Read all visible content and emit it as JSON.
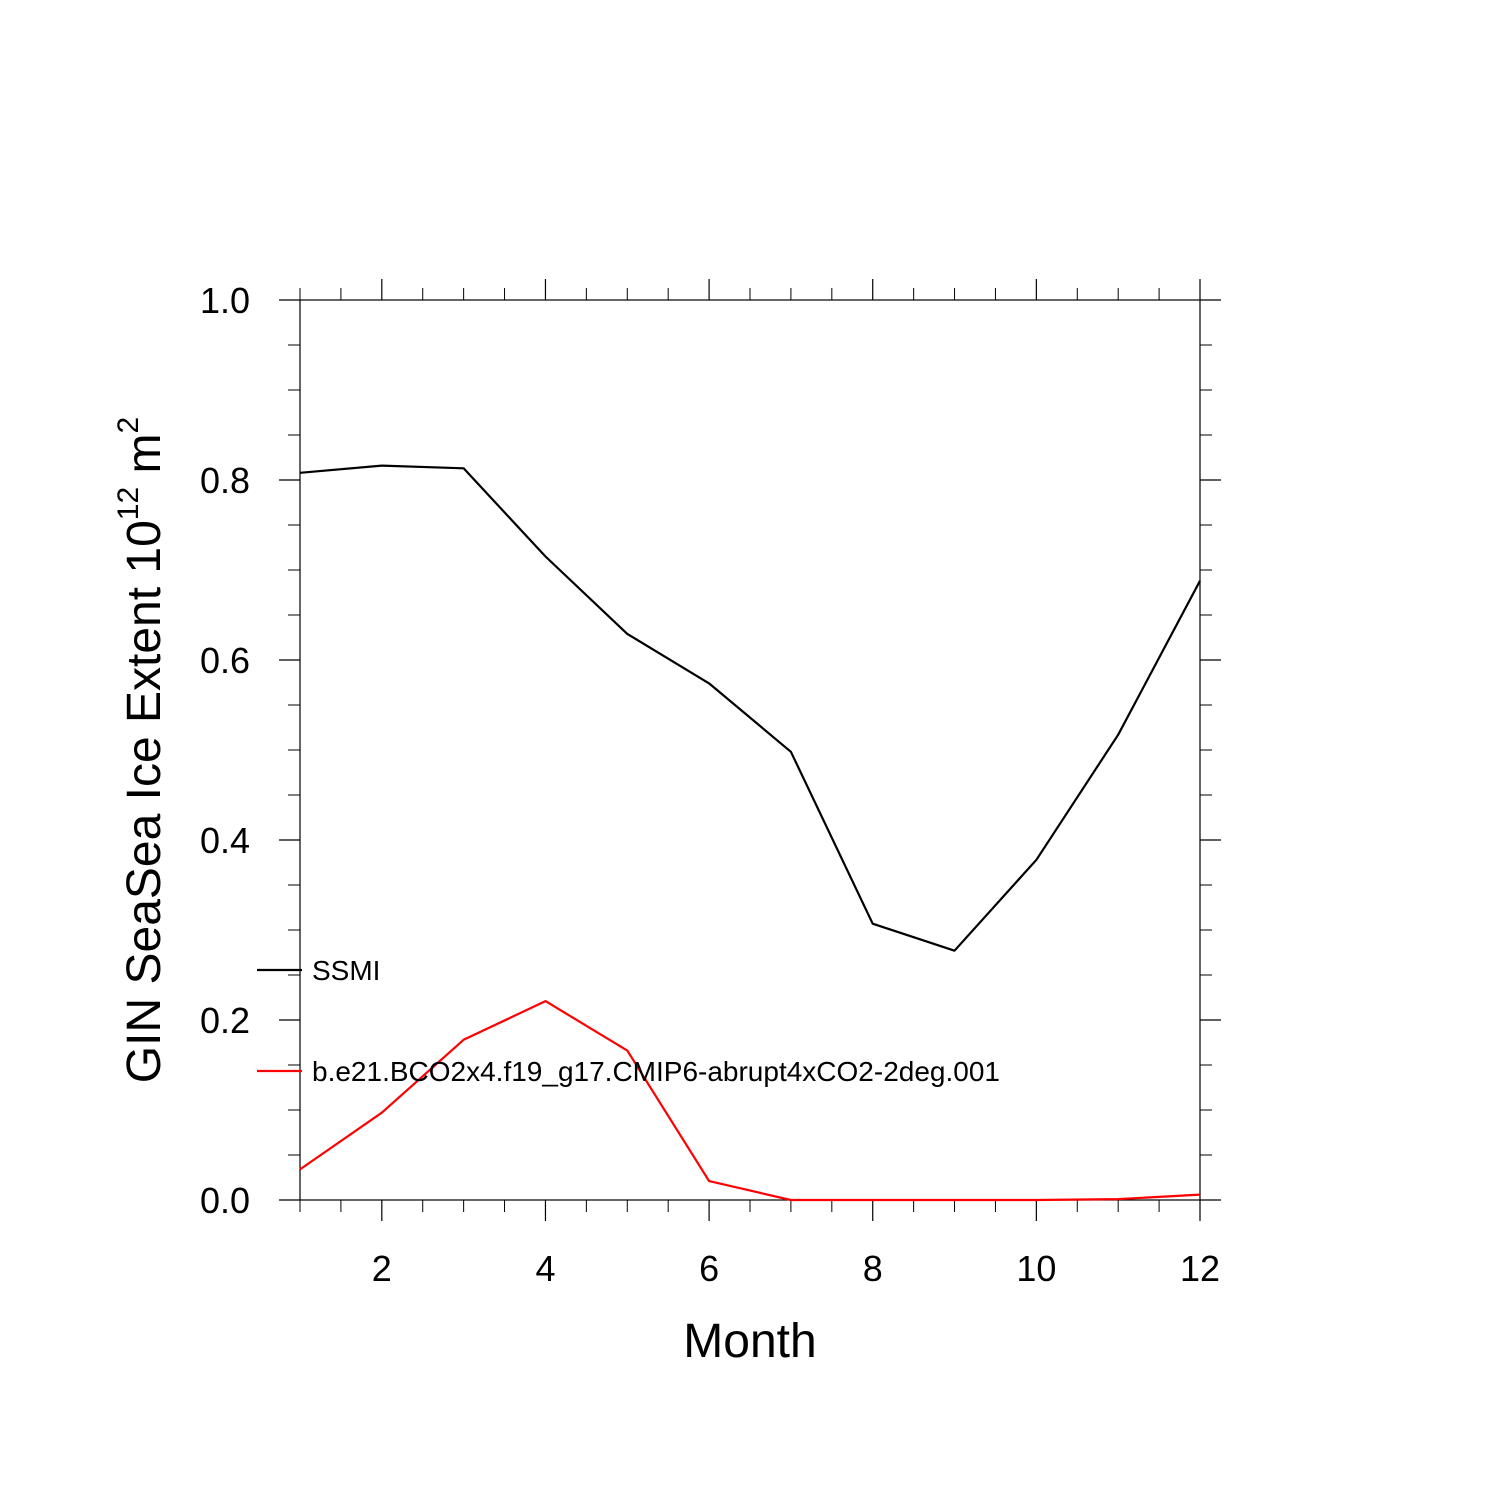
{
  "chart_data": {
    "type": "line",
    "title": "",
    "xlabel": "Month",
    "ylabel": {
      "text": "GIN SeaSea Ice Extent 10",
      "sup": "12",
      "unit": " m",
      "unit_sup": "2"
    },
    "xlim": [
      1,
      12
    ],
    "ylim": [
      0.0,
      1.0
    ],
    "x_ticks": [
      2,
      4,
      6,
      8,
      10,
      12
    ],
    "x_tick_labels": [
      "2",
      "4",
      "6",
      "8",
      "10",
      "12"
    ],
    "y_ticks": [
      0.0,
      0.2,
      0.4,
      0.6,
      0.8,
      1.0
    ],
    "y_tick_labels": [
      "0.0",
      "0.2",
      "0.4",
      "0.6",
      "0.8",
      "1.0"
    ],
    "grid": false,
    "legend_position": "left",
    "x": [
      1,
      2,
      3,
      4,
      5,
      6,
      7,
      8,
      9,
      10,
      11,
      12
    ],
    "series": [
      {
        "name": "SSMI",
        "color": "#000000",
        "values": [
          0.808,
          0.816,
          0.813,
          0.715,
          0.629,
          0.574,
          0.498,
          0.307,
          0.277,
          0.378,
          0.517,
          0.688
        ]
      },
      {
        "name": "b.e21.BCO2x4.f19_g17.CMIP6-abrupt4xCO2-2deg.001",
        "color": "#ff0000",
        "values": [
          0.034,
          0.097,
          0.178,
          0.221,
          0.166,
          0.021,
          0.0,
          0.0,
          0.0,
          0.0,
          0.001,
          0.006
        ]
      }
    ]
  }
}
